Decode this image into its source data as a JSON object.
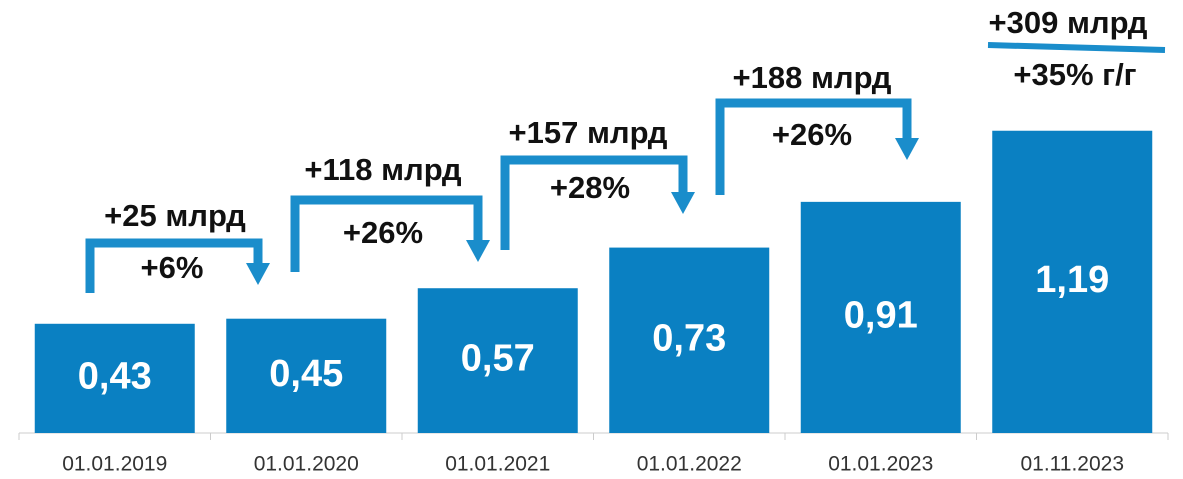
{
  "chart_data": {
    "type": "bar",
    "categories": [
      "01.01.2019",
      "01.01.2020",
      "01.01.2021",
      "01.01.2022",
      "01.01.2023",
      "01.11.2023"
    ],
    "values": [
      0.43,
      0.45,
      0.57,
      0.73,
      0.91,
      1.19
    ],
    "value_labels": [
      "0,43",
      "0,45",
      "0,57",
      "0,73",
      "0,91",
      "1,19"
    ],
    "color": "#0a80c2",
    "annotations": [
      {
        "change": "+25 млрд",
        "percent": "+6%"
      },
      {
        "change": "+118 млрд",
        "percent": "+26%"
      },
      {
        "change": "+157 млрд",
        "percent": "+28%"
      },
      {
        "change": "+188 млрд",
        "percent": "+26%"
      },
      {
        "change": "+309 млрд",
        "percent": "+35% г/г"
      }
    ]
  }
}
